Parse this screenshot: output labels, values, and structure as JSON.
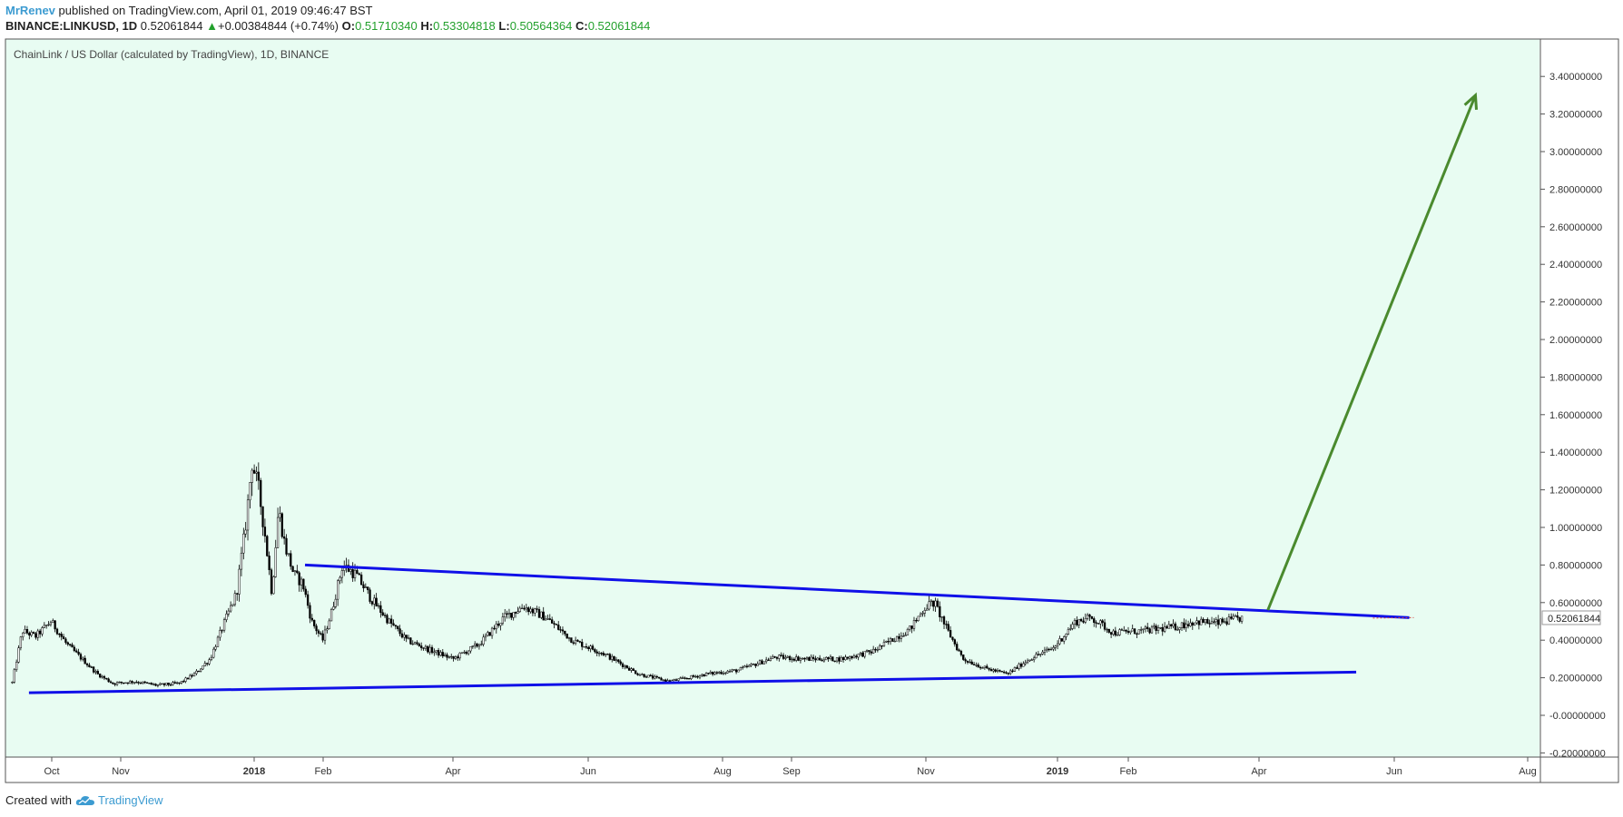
{
  "header": {
    "author": "MrRenev",
    "published_text": "published on TradingView.com, April 01, 2019 09:46:47 BST",
    "symbol": "BINANCE:LINKUSD, 1D",
    "last_price": "0.52061844",
    "change_arrow": "▲",
    "change": "+0.00384844 (+0.74%)",
    "open_label": "O:",
    "open": "0.51710340",
    "high_label": "H:",
    "high": "0.53304818",
    "low_label": "L:",
    "low": "0.50564364",
    "close_label": "C:",
    "close": "0.52061844"
  },
  "chart_title": "ChainLink / US Dollar (calculated by TradingView), 1D, BINANCE",
  "price_tag": "0.52061844",
  "footer": {
    "created_with": "Created with",
    "brand": "TradingView"
  },
  "colors": {
    "plot_bg": "#e8fcf2",
    "candles": "#000000",
    "trendlines": "#1010e8",
    "arrow": "#4a8a2e",
    "brand": "#3c9bd1",
    "up": "#22a02c"
  },
  "chart_data": {
    "type": "candlestick",
    "x_axis_labels": [
      "Oct",
      "Nov",
      "2018",
      "Feb",
      "Apr",
      "Jun",
      "Aug",
      "Sep",
      "Nov",
      "2019",
      "Feb",
      "Apr",
      "Jun",
      "Aug"
    ],
    "x_axis_bold": [
      "2018",
      "2019"
    ],
    "y_ticks": [
      "-0.20000000",
      "-0.00000000",
      "0.20000000",
      "0.40000000",
      "0.60000000",
      "0.80000000",
      "1.00000000",
      "1.20000000",
      "1.40000000",
      "1.60000000",
      "1.80000000",
      "2.00000000",
      "2.20000000",
      "2.40000000",
      "2.60000000",
      "2.80000000",
      "3.00000000",
      "3.20000000",
      "3.40000000"
    ],
    "y_range": [
      -0.22,
      3.6
    ],
    "series_path": [
      [
        "2017-09-20",
        0.15
      ],
      [
        "2017-09-25",
        0.45
      ],
      [
        "2017-10-01",
        0.42
      ],
      [
        "2017-10-08",
        0.5
      ],
      [
        "2017-10-15",
        0.38
      ],
      [
        "2017-10-22",
        0.3
      ],
      [
        "2017-10-29",
        0.22
      ],
      [
        "2017-11-05",
        0.17
      ],
      [
        "2017-11-15",
        0.18
      ],
      [
        "2017-11-25",
        0.16
      ],
      [
        "2017-12-05",
        0.17
      ],
      [
        "2017-12-12",
        0.22
      ],
      [
        "2017-12-19",
        0.3
      ],
      [
        "2017-12-24",
        0.45
      ],
      [
        "2017-12-31",
        0.65
      ],
      [
        "2018-01-04",
        1.0
      ],
      [
        "2018-01-07",
        1.35
      ],
      [
        "2018-01-10",
        1.2
      ],
      [
        "2018-01-13",
        0.95
      ],
      [
        "2018-01-16",
        0.65
      ],
      [
        "2018-01-19",
        1.1
      ],
      [
        "2018-01-22",
        0.9
      ],
      [
        "2018-01-26",
        0.75
      ],
      [
        "2018-01-30",
        0.7
      ],
      [
        "2018-02-03",
        0.5
      ],
      [
        "2018-02-08",
        0.4
      ],
      [
        "2018-02-12",
        0.55
      ],
      [
        "2018-02-17",
        0.8
      ],
      [
        "2018-02-23",
        0.75
      ],
      [
        "2018-03-02",
        0.62
      ],
      [
        "2018-03-10",
        0.5
      ],
      [
        "2018-03-18",
        0.4
      ],
      [
        "2018-03-28",
        0.35
      ],
      [
        "2018-04-08",
        0.3
      ],
      [
        "2018-04-20",
        0.38
      ],
      [
        "2018-05-01",
        0.52
      ],
      [
        "2018-05-10",
        0.58
      ],
      [
        "2018-05-20",
        0.52
      ],
      [
        "2018-06-01",
        0.4
      ],
      [
        "2018-06-15",
        0.33
      ],
      [
        "2018-07-01",
        0.22
      ],
      [
        "2018-07-15",
        0.18
      ],
      [
        "2018-08-01",
        0.22
      ],
      [
        "2018-08-15",
        0.24
      ],
      [
        "2018-09-01",
        0.31
      ],
      [
        "2018-09-15",
        0.3
      ],
      [
        "2018-10-01",
        0.3
      ],
      [
        "2018-10-15",
        0.34
      ],
      [
        "2018-11-01",
        0.46
      ],
      [
        "2018-11-08",
        0.58
      ],
      [
        "2018-11-12",
        0.6
      ],
      [
        "2018-11-18",
        0.45
      ],
      [
        "2018-11-25",
        0.3
      ],
      [
        "2018-12-05",
        0.25
      ],
      [
        "2018-12-15",
        0.22
      ],
      [
        "2018-12-25",
        0.3
      ],
      [
        "2019-01-05",
        0.36
      ],
      [
        "2019-01-15",
        0.5
      ],
      [
        "2019-01-22",
        0.52
      ],
      [
        "2019-02-01",
        0.44
      ],
      [
        "2019-02-15",
        0.45
      ],
      [
        "2019-03-01",
        0.47
      ],
      [
        "2019-03-10",
        0.5
      ],
      [
        "2019-03-20",
        0.49
      ],
      [
        "2019-04-01",
        0.52
      ]
    ],
    "annotations": [
      {
        "type": "trendline",
        "from": [
          "2018-01-31",
          0.8
        ],
        "to": [
          "2019-06-15",
          0.52
        ]
      },
      {
        "type": "trendline",
        "from": [
          "2017-09-28",
          0.12
        ],
        "to": [
          "2019-05-22",
          0.23
        ]
      },
      {
        "type": "arrow",
        "from": [
          "2019-04-12",
          0.56
        ],
        "to": [
          "2019-07-15",
          3.3
        ]
      }
    ]
  }
}
